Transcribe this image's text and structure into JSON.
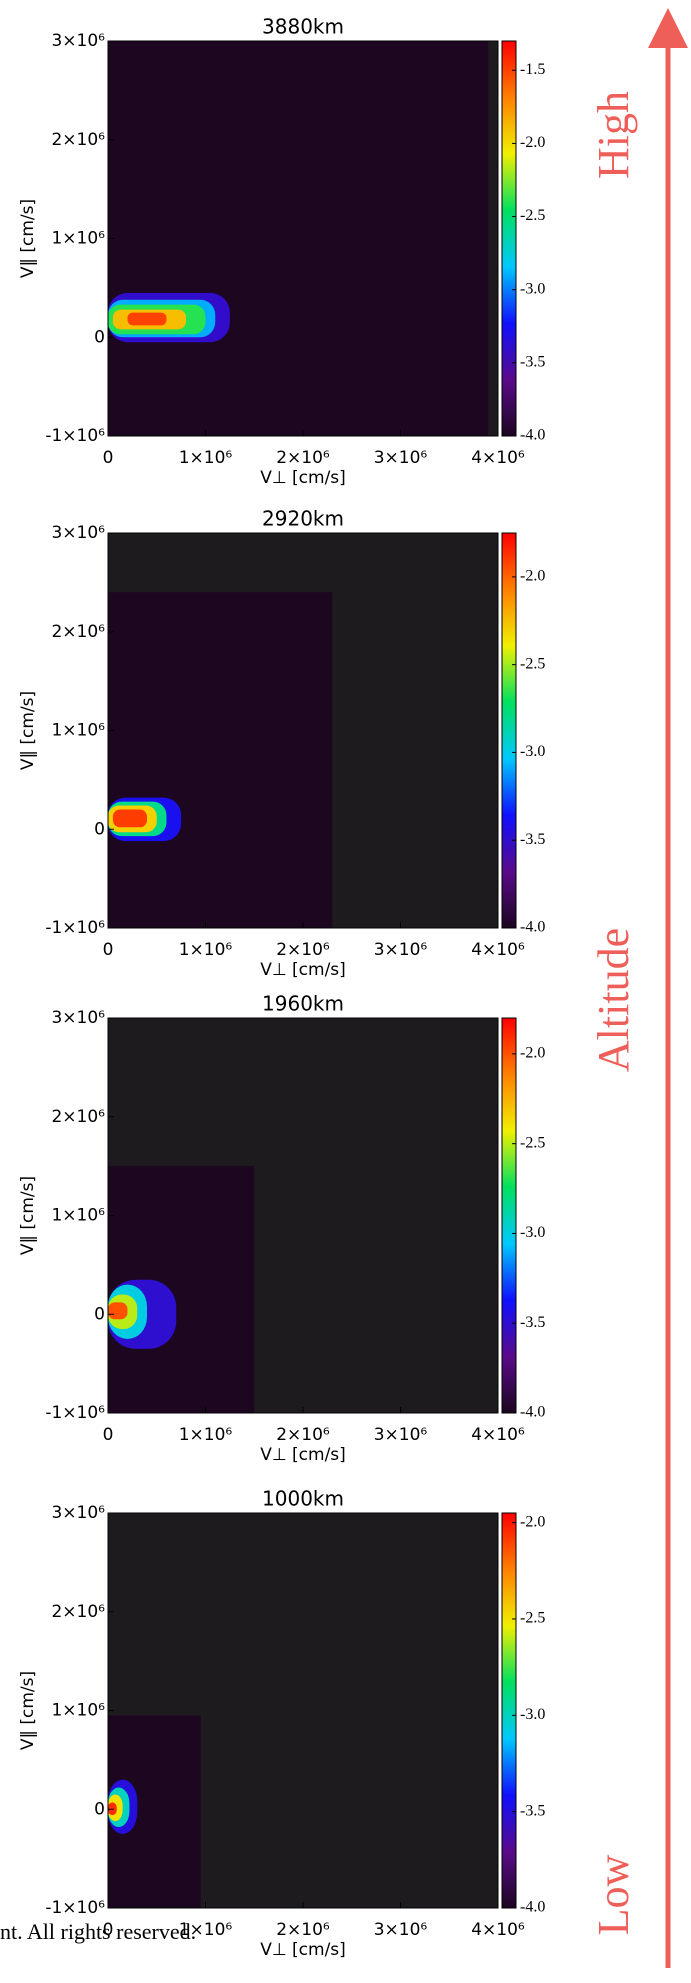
{
  "chart_data": [
    {
      "type": "heatmap",
      "title": "3880km",
      "xlabel": "V⊥ [cm/s]",
      "ylabel": "V‖ [cm/s]",
      "xlim": [
        0,
        4000000
      ],
      "ylim": [
        -1000000,
        3000000
      ],
      "xticks": [
        0,
        {
          "value": 1000000,
          "label": "1×10⁶"
        },
        {
          "value": 2000000,
          "label": "2×10⁶"
        },
        {
          "value": 3000000,
          "label": "3×10⁶"
        },
        {
          "value": 4000000,
          "label": "4×10⁶"
        }
      ],
      "yticks": [
        {
          "value": -1000000,
          "label": "-1×10⁶"
        },
        0,
        {
          "value": 1000000,
          "label": "1×10⁶"
        },
        {
          "value": 2000000,
          "label": "2×10⁶"
        },
        {
          "value": 3000000,
          "label": "3×10⁶"
        }
      ],
      "clim": [
        -4.0,
        -1.3
      ],
      "cticks": [
        -1.5,
        {
          "value": -2,
          "label": "-2.0"
        },
        -2.5,
        {
          "value": -3,
          "label": "-3.0"
        },
        -3.5,
        {
          "value": -4,
          "label": "-4.0"
        }
      ],
      "cells": [
        {
          "x": [
            0,
            3900000
          ],
          "y": [
            -1000000,
            3000000
          ],
          "value": -4
        },
        {
          "x": [
            0,
            1250000
          ],
          "y": [
            -50000,
            450000
          ],
          "value": -3.4
        },
        {
          "x": [
            0,
            1100000
          ],
          "y": [
            0,
            380000
          ],
          "value": -2.9
        },
        {
          "x": [
            0,
            1000000
          ],
          "y": [
            30000,
            330000
          ],
          "value": -2.4
        },
        {
          "x": [
            50000,
            800000
          ],
          "y": [
            80000,
            280000
          ],
          "value": -1.9
        },
        {
          "x": [
            200000,
            600000
          ],
          "y": [
            120000,
            250000
          ],
          "value": -1.5
        }
      ]
    },
    {
      "type": "heatmap",
      "title": "2920km",
      "xlabel": "V⊥ [cm/s]",
      "ylabel": "V‖ [cm/s]",
      "xlim": [
        0,
        4000000
      ],
      "ylim": [
        -1000000,
        3000000
      ],
      "xticks": [
        0,
        {
          "value": 1000000,
          "label": "1×10⁶"
        },
        {
          "value": 2000000,
          "label": "2×10⁶"
        },
        {
          "value": 3000000,
          "label": "3×10⁶"
        },
        {
          "value": 4000000,
          "label": "4×10⁶"
        }
      ],
      "yticks": [
        {
          "value": -1000000,
          "label": "-1×10⁶"
        },
        0,
        {
          "value": 1000000,
          "label": "1×10⁶"
        },
        {
          "value": 2000000,
          "label": "2×10⁶"
        },
        {
          "value": 3000000,
          "label": "3×10⁶"
        }
      ],
      "clim": [
        -4.0,
        -1.75
      ],
      "cticks": [
        {
          "value": -2,
          "label": "-2.0"
        },
        -2.5,
        {
          "value": -3,
          "label": "-3.0"
        },
        -3.5,
        {
          "value": -4,
          "label": "-4.0"
        }
      ],
      "cells": [
        {
          "x": [
            0,
            2300000
          ],
          "y": [
            -1000000,
            2400000
          ],
          "value": -4
        },
        {
          "x": [
            0,
            750000
          ],
          "y": [
            -120000,
            320000
          ],
          "value": -3.4
        },
        {
          "x": [
            0,
            600000
          ],
          "y": [
            -70000,
            280000
          ],
          "value": -2.8
        },
        {
          "x": [
            0,
            500000
          ],
          "y": [
            -30000,
            240000
          ],
          "value": -2.3
        },
        {
          "x": [
            50000,
            400000
          ],
          "y": [
            20000,
            200000
          ],
          "value": -1.9
        }
      ]
    },
    {
      "type": "heatmap",
      "title": "1960km",
      "xlabel": "V⊥ [cm/s]",
      "ylabel": "V‖ [cm/s]",
      "xlim": [
        0,
        4000000
      ],
      "ylim": [
        -1000000,
        3000000
      ],
      "xticks": [
        0,
        {
          "value": 1000000,
          "label": "1×10⁶"
        },
        {
          "value": 2000000,
          "label": "2×10⁶"
        },
        {
          "value": 3000000,
          "label": "3×10⁶"
        },
        {
          "value": 4000000,
          "label": "4×10⁶"
        }
      ],
      "yticks": [
        {
          "value": -1000000,
          "label": "-1×10⁶"
        },
        0,
        {
          "value": 1000000,
          "label": "1×10⁶"
        },
        {
          "value": 2000000,
          "label": "2×10⁶"
        },
        {
          "value": 3000000,
          "label": "3×10⁶"
        }
      ],
      "clim": [
        -4.0,
        -1.8
      ],
      "cticks": [
        {
          "value": -2,
          "label": "-2.0"
        },
        -2.5,
        {
          "value": -3,
          "label": "-3.0"
        },
        -3.5,
        {
          "value": -4,
          "label": "-4.0"
        }
      ],
      "cells": [
        {
          "x": [
            0,
            1500000
          ],
          "y": [
            -1000000,
            1500000
          ],
          "value": -4
        },
        {
          "x": [
            0,
            700000
          ],
          "y": [
            -350000,
            350000
          ],
          "value": -3.5
        },
        {
          "x": [
            0,
            400000
          ],
          "y": [
            -250000,
            300000
          ],
          "value": -3.0
        },
        {
          "x": [
            0,
            300000
          ],
          "y": [
            -150000,
            200000
          ],
          "value": -2.5
        },
        {
          "x": [
            0,
            200000
          ],
          "y": [
            -50000,
            120000
          ],
          "value": -2.0
        }
      ]
    },
    {
      "type": "heatmap",
      "title": "1000km",
      "xlabel": "V⊥ [cm/s]",
      "ylabel": "V‖ [cm/s]",
      "xlim": [
        0,
        4000000
      ],
      "ylim": [
        -1000000,
        3000000
      ],
      "xticks": [
        0,
        {
          "value": 1000000,
          "label": "1×10⁶"
        },
        {
          "value": 2000000,
          "label": "2×10⁶"
        },
        {
          "value": 3000000,
          "label": "3×10⁶"
        },
        {
          "value": 4000000,
          "label": "4×10⁶"
        }
      ],
      "yticks": [
        {
          "value": -1000000,
          "label": "-1×10⁶"
        },
        0,
        {
          "value": 1000000,
          "label": "1×10⁶"
        },
        {
          "value": 2000000,
          "label": "2×10⁶"
        },
        {
          "value": 3000000,
          "label": "3×10⁶"
        }
      ],
      "clim": [
        -4.0,
        -1.95
      ],
      "cticks": [
        {
          "value": -2,
          "label": "-2.0"
        },
        -2.5,
        {
          "value": -3,
          "label": "-3.0"
        },
        -3.5,
        {
          "value": -4,
          "label": "-4.0"
        }
      ],
      "cells": [
        {
          "x": [
            0,
            950000
          ],
          "y": [
            -1000000,
            950000
          ],
          "value": -4
        },
        {
          "x": [
            0,
            300000
          ],
          "y": [
            -250000,
            300000
          ],
          "value": -3.5
        },
        {
          "x": [
            0,
            220000
          ],
          "y": [
            -180000,
            220000
          ],
          "value": -3.0
        },
        {
          "x": [
            0,
            150000
          ],
          "y": [
            -120000,
            150000
          ],
          "value": -2.5
        },
        {
          "x": [
            0,
            90000
          ],
          "y": [
            -60000,
            70000
          ],
          "value": -2.05
        }
      ]
    }
  ],
  "colorscale": [
    "#1c0620",
    "#5a0a8a",
    "#1010ff",
    "#00c8ff",
    "#00e060",
    "#f0f000",
    "#ff8000",
    "#ff0000"
  ],
  "background": "#1e1b1f",
  "annotations": [
    "High",
    "Altitude",
    "Low"
  ],
  "footer": "nt. All rights reserved."
}
